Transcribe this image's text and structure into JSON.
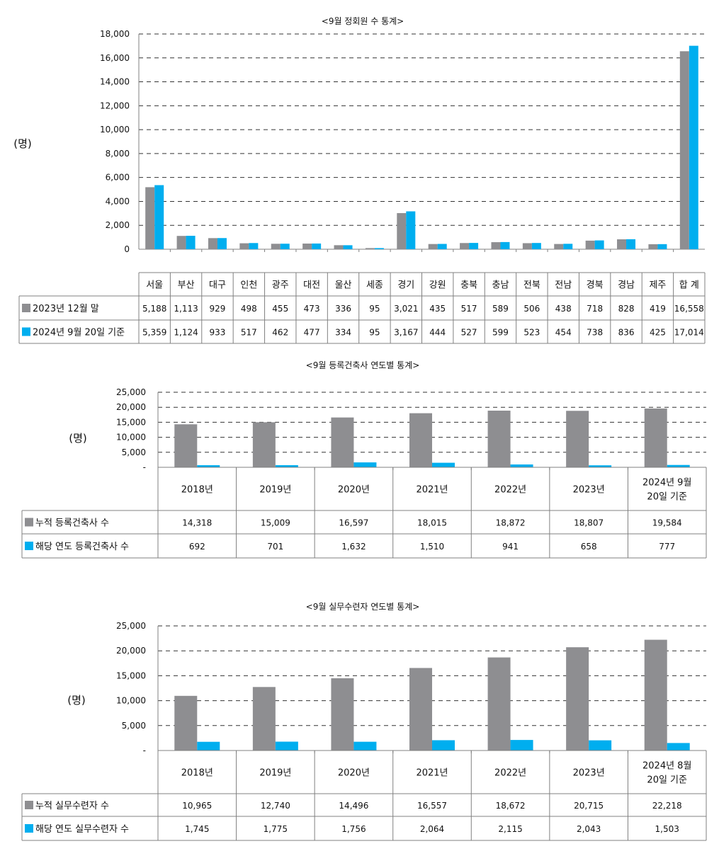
{
  "colors": {
    "series1": "#8e8e91",
    "series2": "#00aeef",
    "grid": "#333333",
    "border": "#808080"
  },
  "chart_data": [
    {
      "type": "bar",
      "title": "<9월 정회원 수 통계>",
      "ylabel": "(명)",
      "ylim": [
        0,
        18000
      ],
      "yticks": [
        "0",
        "2,000",
        "4,000",
        "6,000",
        "8,000",
        "10,000",
        "12,000",
        "14,000",
        "16,000",
        "18,000"
      ],
      "categories": [
        "서울",
        "부산",
        "대구",
        "인천",
        "광주",
        "대전",
        "울산",
        "세종",
        "경기",
        "강원",
        "충북",
        "충남",
        "전북",
        "전남",
        "경북",
        "경남",
        "제주",
        "합 계"
      ],
      "series": [
        {
          "name": "2023년 12월 말",
          "values": [
            5188,
            1113,
            929,
            498,
            455,
            473,
            336,
            95,
            3021,
            435,
            517,
            589,
            506,
            438,
            718,
            828,
            419,
            16558
          ],
          "labels": [
            "5,188",
            "1,113",
            "929",
            "498",
            "455",
            "473",
            "336",
            "95",
            "3,021",
            "435",
            "517",
            "589",
            "506",
            "438",
            "718",
            "828",
            "419",
            "16,558"
          ]
        },
        {
          "name": "2024년 9월 20일 기준",
          "values": [
            5359,
            1124,
            933,
            517,
            462,
            477,
            334,
            95,
            3167,
            444,
            527,
            599,
            523,
            454,
            738,
            836,
            425,
            17014
          ],
          "labels": [
            "5,359",
            "1,124",
            "933",
            "517",
            "462",
            "477",
            "334",
            "95",
            "3,167",
            "444",
            "527",
            "599",
            "523",
            "454",
            "738",
            "836",
            "425",
            "17,014"
          ]
        }
      ]
    },
    {
      "type": "bar",
      "title": "<9월 등록건축사 연도별 통계>",
      "ylabel": "(명)",
      "ylim": [
        0,
        25000
      ],
      "yticks": [
        "-",
        "5,000",
        "10,000",
        "15,000",
        "20,000",
        "25,000"
      ],
      "categories": [
        [
          "2018년"
        ],
        [
          "2019년"
        ],
        [
          "2020년"
        ],
        [
          "2021년"
        ],
        [
          "2022년"
        ],
        [
          "2023년"
        ],
        [
          "2024년 9월",
          "20일 기준"
        ]
      ],
      "series": [
        {
          "name": "누적 등록건축사 수",
          "values": [
            14318,
            15009,
            16597,
            18015,
            18872,
            18807,
            19584
          ],
          "labels": [
            "14,318",
            "15,009",
            "16,597",
            "18,015",
            "18,872",
            "18,807",
            "19,584"
          ]
        },
        {
          "name": "해당 연도 등록건축사 수",
          "values": [
            692,
            701,
            1632,
            1510,
            941,
            658,
            777
          ],
          "labels": [
            "692",
            "701",
            "1,632",
            "1,510",
            "941",
            "658",
            "777"
          ]
        }
      ]
    },
    {
      "type": "bar",
      "title": "<9월 실무수련자 연도별 통계>",
      "ylabel": "(명)",
      "ylim": [
        0,
        25000
      ],
      "yticks": [
        "-",
        "5,000",
        "10,000",
        "15,000",
        "20,000",
        "25,000"
      ],
      "categories": [
        [
          "2018년"
        ],
        [
          "2019년"
        ],
        [
          "2020년"
        ],
        [
          "2021년"
        ],
        [
          "2022년"
        ],
        [
          "2023년"
        ],
        [
          "2024년 8월",
          "20일 기준"
        ]
      ],
      "series": [
        {
          "name": "누적 실무수련자 수",
          "values": [
            10965,
            12740,
            14496,
            16557,
            18672,
            20715,
            22218
          ],
          "labels": [
            "10,965",
            "12,740",
            "14,496",
            "16,557",
            "18,672",
            "20,715",
            "22,218"
          ]
        },
        {
          "name": "해당 연도 실무수련자 수",
          "values": [
            1745,
            1775,
            1756,
            2064,
            2115,
            2043,
            1503
          ],
          "labels": [
            "1,745",
            "1,775",
            "1,756",
            "2,064",
            "2,115",
            "2,043",
            "1,503"
          ]
        }
      ]
    }
  ]
}
